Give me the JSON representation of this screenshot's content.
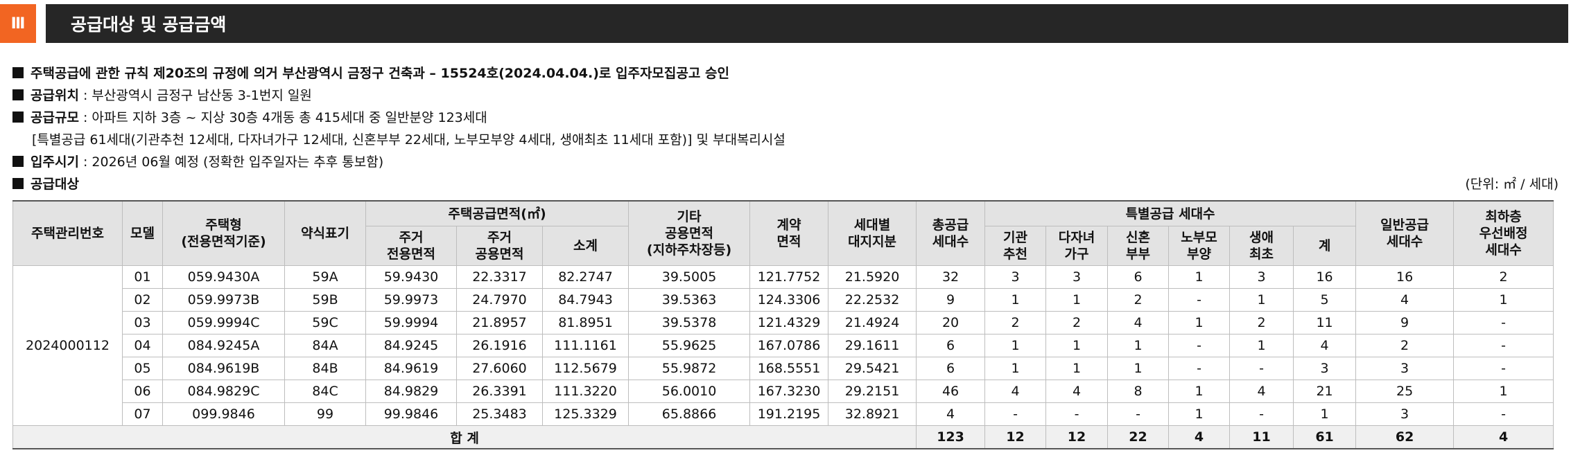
{
  "section": {
    "number": "Ⅲ",
    "title": "공급대상 및 공급금액"
  },
  "info": {
    "approval": "주택공급에 관한 규칙 제20조의 규정에 의거 부산광역시 금정구 건축과 – 15524호(2024.04.04.)로 입주자모집공고 승인",
    "location_label": "공급위치",
    "location_value": " : 부산광역시 금정구 남산동 3-1번지 일원",
    "scale_label": "공급규모",
    "scale_value": " : 아파트 지하 3층 ~ 지상 30층 4개동 총 415세대 중 일반분양 123세대",
    "scale_detail": "[특별공급 61세대(기관추천 12세대, 다자녀가구 12세대, 신혼부부 22세대, 노부모부양 4세대, 생애최초 11세대 포함)] 및 부대복리시설",
    "move_in_label": "입주시기",
    "move_in_value": " : 2026년 06월 예정 (정확한 입주일자는 추후 통보함)",
    "target_label": "공급대상",
    "unit_note": "(단위: ㎡ / 세대)"
  },
  "table": {
    "headers": {
      "mgmt_no": "주택관리번호",
      "model": "모델",
      "type_line1": "주택형",
      "type_line2": "(전용면적기준)",
      "short": "약식표기",
      "area_group": "주택공급면적(㎡)",
      "excl_line1": "주거",
      "excl_line2": "전용면적",
      "common_line1": "주거",
      "common_line2": "공용면적",
      "subtotal": "소계",
      "other_line1": "기타",
      "other_line2": "공용면적",
      "other_line3": "(지하주차장등)",
      "contract_line1": "계약",
      "contract_line2": "면적",
      "land_line1": "세대별",
      "land_line2": "대지지분",
      "total_line1": "총공급",
      "total_line2": "세대수",
      "special_group": "특별공급 세대수",
      "inst_line1": "기관",
      "inst_line2": "추천",
      "multi_line1": "다자녀",
      "multi_line2": "가구",
      "newly_line1": "신혼",
      "newly_line2": "부부",
      "elder_line1": "노부모",
      "elder_line2": "부양",
      "first_line1": "생애",
      "first_line2": "최초",
      "sp_sum": "계",
      "general_line1": "일반공급",
      "general_line2": "세대수",
      "lowfloor_line1": "최하층",
      "lowfloor_line2": "우선배정",
      "lowfloor_line3": "세대수"
    },
    "mgmt_no_value": "2024000112",
    "rows": [
      [
        "01",
        "059.9430A",
        "59A",
        "59.9430",
        "22.3317",
        "82.2747",
        "39.5005",
        "121.7752",
        "21.5920",
        "32",
        "3",
        "3",
        "6",
        "1",
        "3",
        "16",
        "16",
        "2"
      ],
      [
        "02",
        "059.9973B",
        "59B",
        "59.9973",
        "24.7970",
        "84.7943",
        "39.5363",
        "124.3306",
        "22.2532",
        "9",
        "1",
        "1",
        "2",
        "-",
        "1",
        "5",
        "4",
        "1"
      ],
      [
        "03",
        "059.9994C",
        "59C",
        "59.9994",
        "21.8957",
        "81.8951",
        "39.5378",
        "121.4329",
        "21.4924",
        "20",
        "2",
        "2",
        "4",
        "1",
        "2",
        "11",
        "9",
        "-"
      ],
      [
        "04",
        "084.9245A",
        "84A",
        "84.9245",
        "26.1916",
        "111.1161",
        "55.9625",
        "167.0786",
        "29.1611",
        "6",
        "1",
        "1",
        "1",
        "-",
        "1",
        "4",
        "2",
        "-"
      ],
      [
        "05",
        "084.9619B",
        "84B",
        "84.9619",
        "27.6060",
        "112.5679",
        "55.9872",
        "168.5551",
        "29.5421",
        "6",
        "1",
        "1",
        "1",
        "-",
        "-",
        "3",
        "3",
        "-"
      ],
      [
        "06",
        "084.9829C",
        "84C",
        "84.9829",
        "26.3391",
        "111.3220",
        "56.0010",
        "167.3230",
        "29.2151",
        "46",
        "4",
        "4",
        "8",
        "1",
        "4",
        "21",
        "25",
        "1"
      ],
      [
        "07",
        "099.9846",
        "99",
        "99.9846",
        "25.3483",
        "125.3329",
        "65.8866",
        "191.2195",
        "32.8921",
        "4",
        "-",
        "-",
        "-",
        "1",
        "-",
        "1",
        "3",
        "-"
      ]
    ],
    "total": {
      "label": "합 계",
      "values": [
        "123",
        "12",
        "12",
        "22",
        "4",
        "11",
        "61",
        "62",
        "4"
      ]
    }
  }
}
